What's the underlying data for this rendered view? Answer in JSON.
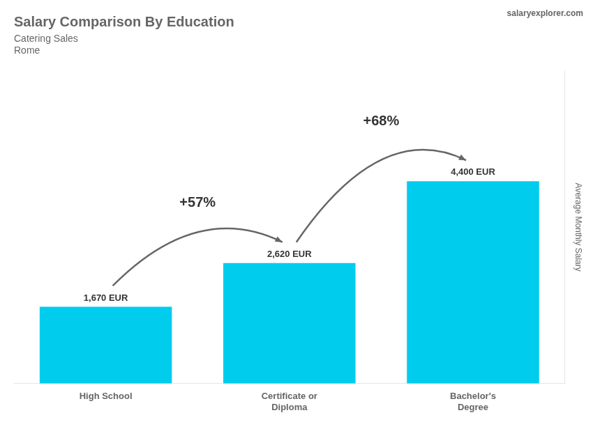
{
  "chart_data": {
    "type": "bar",
    "title": "Salary Comparison By Education",
    "subtitle": "Catering Sales",
    "location": "Rome",
    "watermark": "salaryexplorer.com",
    "ylabel": "Average Monthly Salary",
    "categories": [
      "High School",
      "Certificate or\nDiploma",
      "Bachelor's\nDegree"
    ],
    "values": [
      1670,
      2620,
      4400
    ],
    "value_labels": [
      "1,670 EUR",
      "2,620 EUR",
      "4,400 EUR"
    ],
    "data_labels": true,
    "annotations": [
      "+57%",
      "+68%"
    ],
    "color": "#00ccee",
    "ylim": [
      0,
      6800
    ],
    "tick_labels": "x",
    "grid": false
  }
}
